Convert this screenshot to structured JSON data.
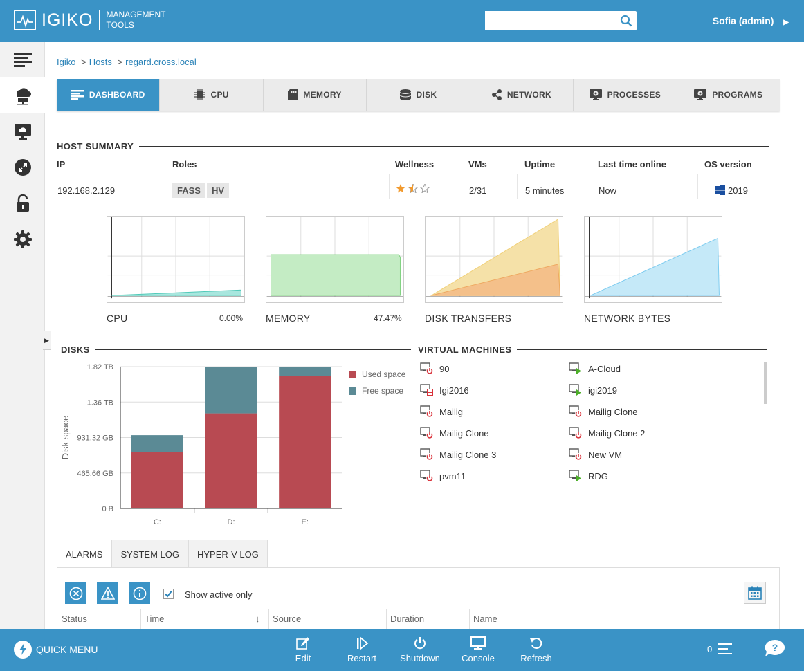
{
  "header": {
    "logo_name": "IGIKO",
    "logo_sub1": "MANAGEMENT",
    "logo_sub2": "TOOLS",
    "search_value": "",
    "user": "Sofia (admin)"
  },
  "breadcrumb": [
    "Igiko",
    "Hosts",
    "regard.cross.local"
  ],
  "tabs": [
    "DASHBOARD",
    "CPU",
    "MEMORY",
    "DISK",
    "NETWORK",
    "PROCESSES",
    "PROGRAMS"
  ],
  "host_summary": {
    "title": "HOST SUMMARY",
    "headers": {
      "ip": "IP",
      "roles": "Roles",
      "wellness": "Wellness",
      "vms": "VMs",
      "uptime": "Uptime",
      "last_online": "Last time online",
      "os": "OS version"
    },
    "ip": "192.168.2.129",
    "roles": [
      "FASS",
      "HV"
    ],
    "wellness_stars": 1.5,
    "vms": "2/31",
    "uptime": "5 minutes",
    "last_online": "Now",
    "os": "2019"
  },
  "mini_charts": [
    {
      "label": "CPU",
      "value": "0.00%"
    },
    {
      "label": "MEMORY",
      "value": "47.47%"
    },
    {
      "label": "DISK TRANSFERS",
      "value": ""
    },
    {
      "label": "NETWORK BYTES",
      "value": ""
    }
  ],
  "chart_data": {
    "type": "bar",
    "title": "DISKS",
    "ylabel": "Disk space",
    "categories": [
      "C:",
      "D:",
      "E:"
    ],
    "y_ticks": [
      "0 B",
      "465.66 GB",
      "931.32 GB",
      "1.36 TB",
      "1.82 TB"
    ],
    "ylim": [
      0,
      1.82
    ],
    "series": [
      {
        "name": "Used space",
        "color": "#b84a52",
        "values": [
          0.72,
          1.22,
          1.7
        ]
      },
      {
        "name": "Free space",
        "color": "#5b8a95",
        "values": [
          0.22,
          0.6,
          0.12
        ]
      }
    ],
    "legend": "right",
    "stacked": true
  },
  "vms_section": {
    "title": "VIRTUAL MACHINES",
    "items": [
      {
        "name": "90",
        "state": "off"
      },
      {
        "name": "A-Cloud",
        "state": "running"
      },
      {
        "name": "Igi2016",
        "state": "saved"
      },
      {
        "name": "igi2019",
        "state": "running"
      },
      {
        "name": "Mailig",
        "state": "off"
      },
      {
        "name": "Mailig Clone",
        "state": "off"
      },
      {
        "name": "Mailig Clone",
        "state": "off"
      },
      {
        "name": "Mailig Clone 2",
        "state": "off"
      },
      {
        "name": "Mailig Clone 3",
        "state": "off"
      },
      {
        "name": "New VM",
        "state": "off"
      },
      {
        "name": "pvm11",
        "state": "off"
      },
      {
        "name": "RDG",
        "state": "running"
      }
    ]
  },
  "logs": {
    "tabs": [
      "ALARMS",
      "SYSTEM LOG",
      "HYPER-V LOG"
    ],
    "show_active_label": "Show active only",
    "show_active_checked": true,
    "columns": [
      "Status",
      "Time",
      "Source",
      "Duration",
      "Name"
    ],
    "sort_indicator": "↓"
  },
  "bottom_bar": {
    "quick_menu": "QUICK MENU",
    "actions": [
      "Edit",
      "Restart",
      "Shutdown",
      "Console",
      "Refresh"
    ],
    "notification_count": "0"
  },
  "colors": {
    "accent": "#3a93c6",
    "used": "#b84a52",
    "free": "#5b8a95"
  }
}
